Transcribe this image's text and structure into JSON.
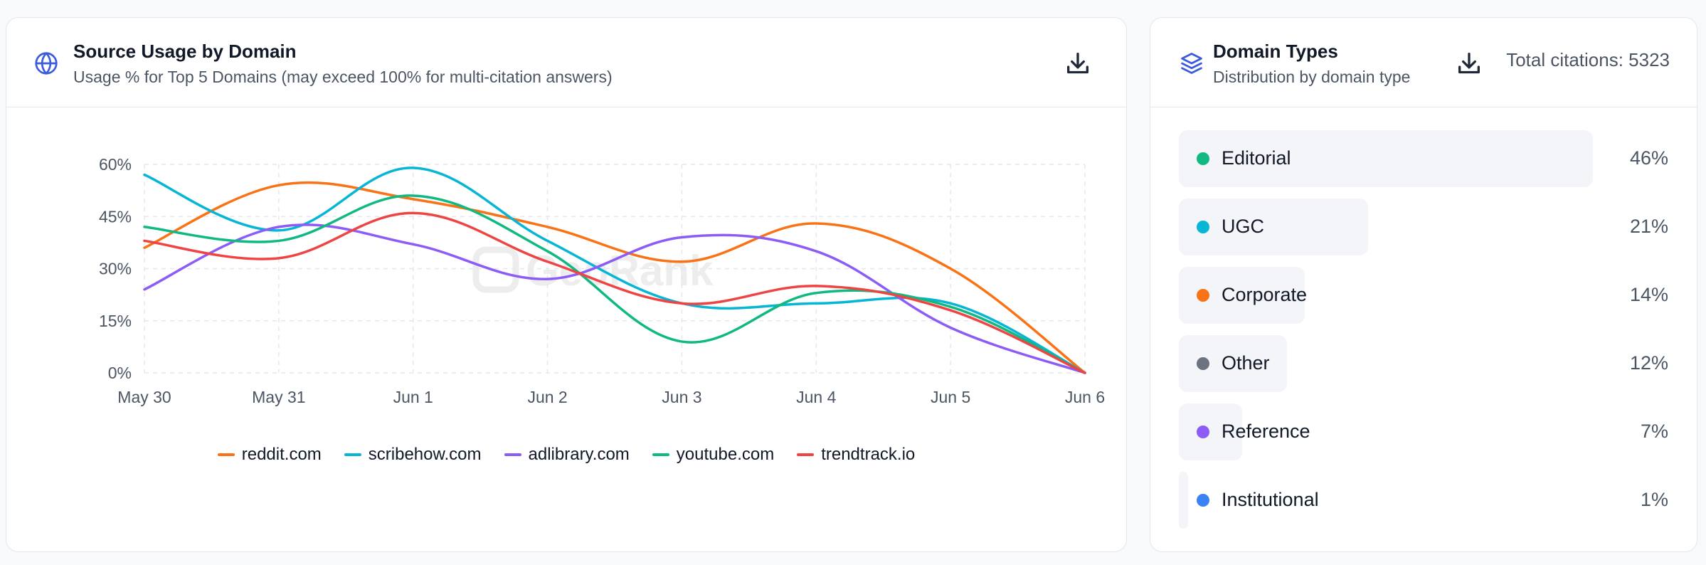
{
  "left_card": {
    "title": "Source Usage by Domain",
    "subtitle": "Usage % for Top 5 Domains (may exceed 100% for multi-citation answers)",
    "title_icon": "globe-icon",
    "download_icon": "download-icon",
    "watermark": "GeoRank"
  },
  "chart_data": {
    "type": "line",
    "categories": [
      "May 30",
      "May 31",
      "Jun 1",
      "Jun 2",
      "Jun 3",
      "Jun 4",
      "Jun 5",
      "Jun 6"
    ],
    "y_ticks": [
      "0%",
      "15%",
      "30%",
      "45%",
      "60%"
    ],
    "ylim": [
      0,
      60
    ],
    "grid": true,
    "legend_position": "bottom",
    "series": [
      {
        "name": "reddit.com",
        "color": "#f97316",
        "values": [
          36,
          54,
          50,
          42,
          32,
          43,
          30,
          0
        ]
      },
      {
        "name": "scribehow.com",
        "color": "#06b6d4",
        "values": [
          57,
          41,
          59,
          38,
          20,
          20,
          20,
          0
        ]
      },
      {
        "name": "adlibrary.com",
        "color": "#8b5cf6",
        "values": [
          24,
          42,
          37,
          27,
          39,
          35,
          13,
          0
        ]
      },
      {
        "name": "youtube.com",
        "color": "#10b981",
        "values": [
          42,
          38,
          51,
          35,
          9,
          23,
          19,
          0
        ]
      },
      {
        "name": "trendtrack.io",
        "color": "#ef4444",
        "values": [
          38,
          33,
          46,
          32,
          20,
          25,
          18,
          0
        ]
      }
    ]
  },
  "right_card": {
    "title": "Domain Types",
    "subtitle": "Distribution by domain type",
    "title_icon": "layers-icon",
    "download_icon": "download-icon",
    "total_label": "Total citations: 5323",
    "types": [
      {
        "label": "Editorial",
        "pct_label": "46%",
        "fraction": 0.46,
        "color": "#10b981"
      },
      {
        "label": "UGC",
        "pct_label": "21%",
        "fraction": 0.21,
        "color": "#06b6d4"
      },
      {
        "label": "Corporate",
        "pct_label": "14%",
        "fraction": 0.14,
        "color": "#f97316"
      },
      {
        "label": "Other",
        "pct_label": "12%",
        "fraction": 0.12,
        "color": "#6b7280"
      },
      {
        "label": "Reference",
        "pct_label": "7%",
        "fraction": 0.07,
        "color": "#8b5cf6"
      },
      {
        "label": "Institutional",
        "pct_label": "1%",
        "fraction": 0.01,
        "color": "#3b82f6"
      }
    ]
  }
}
